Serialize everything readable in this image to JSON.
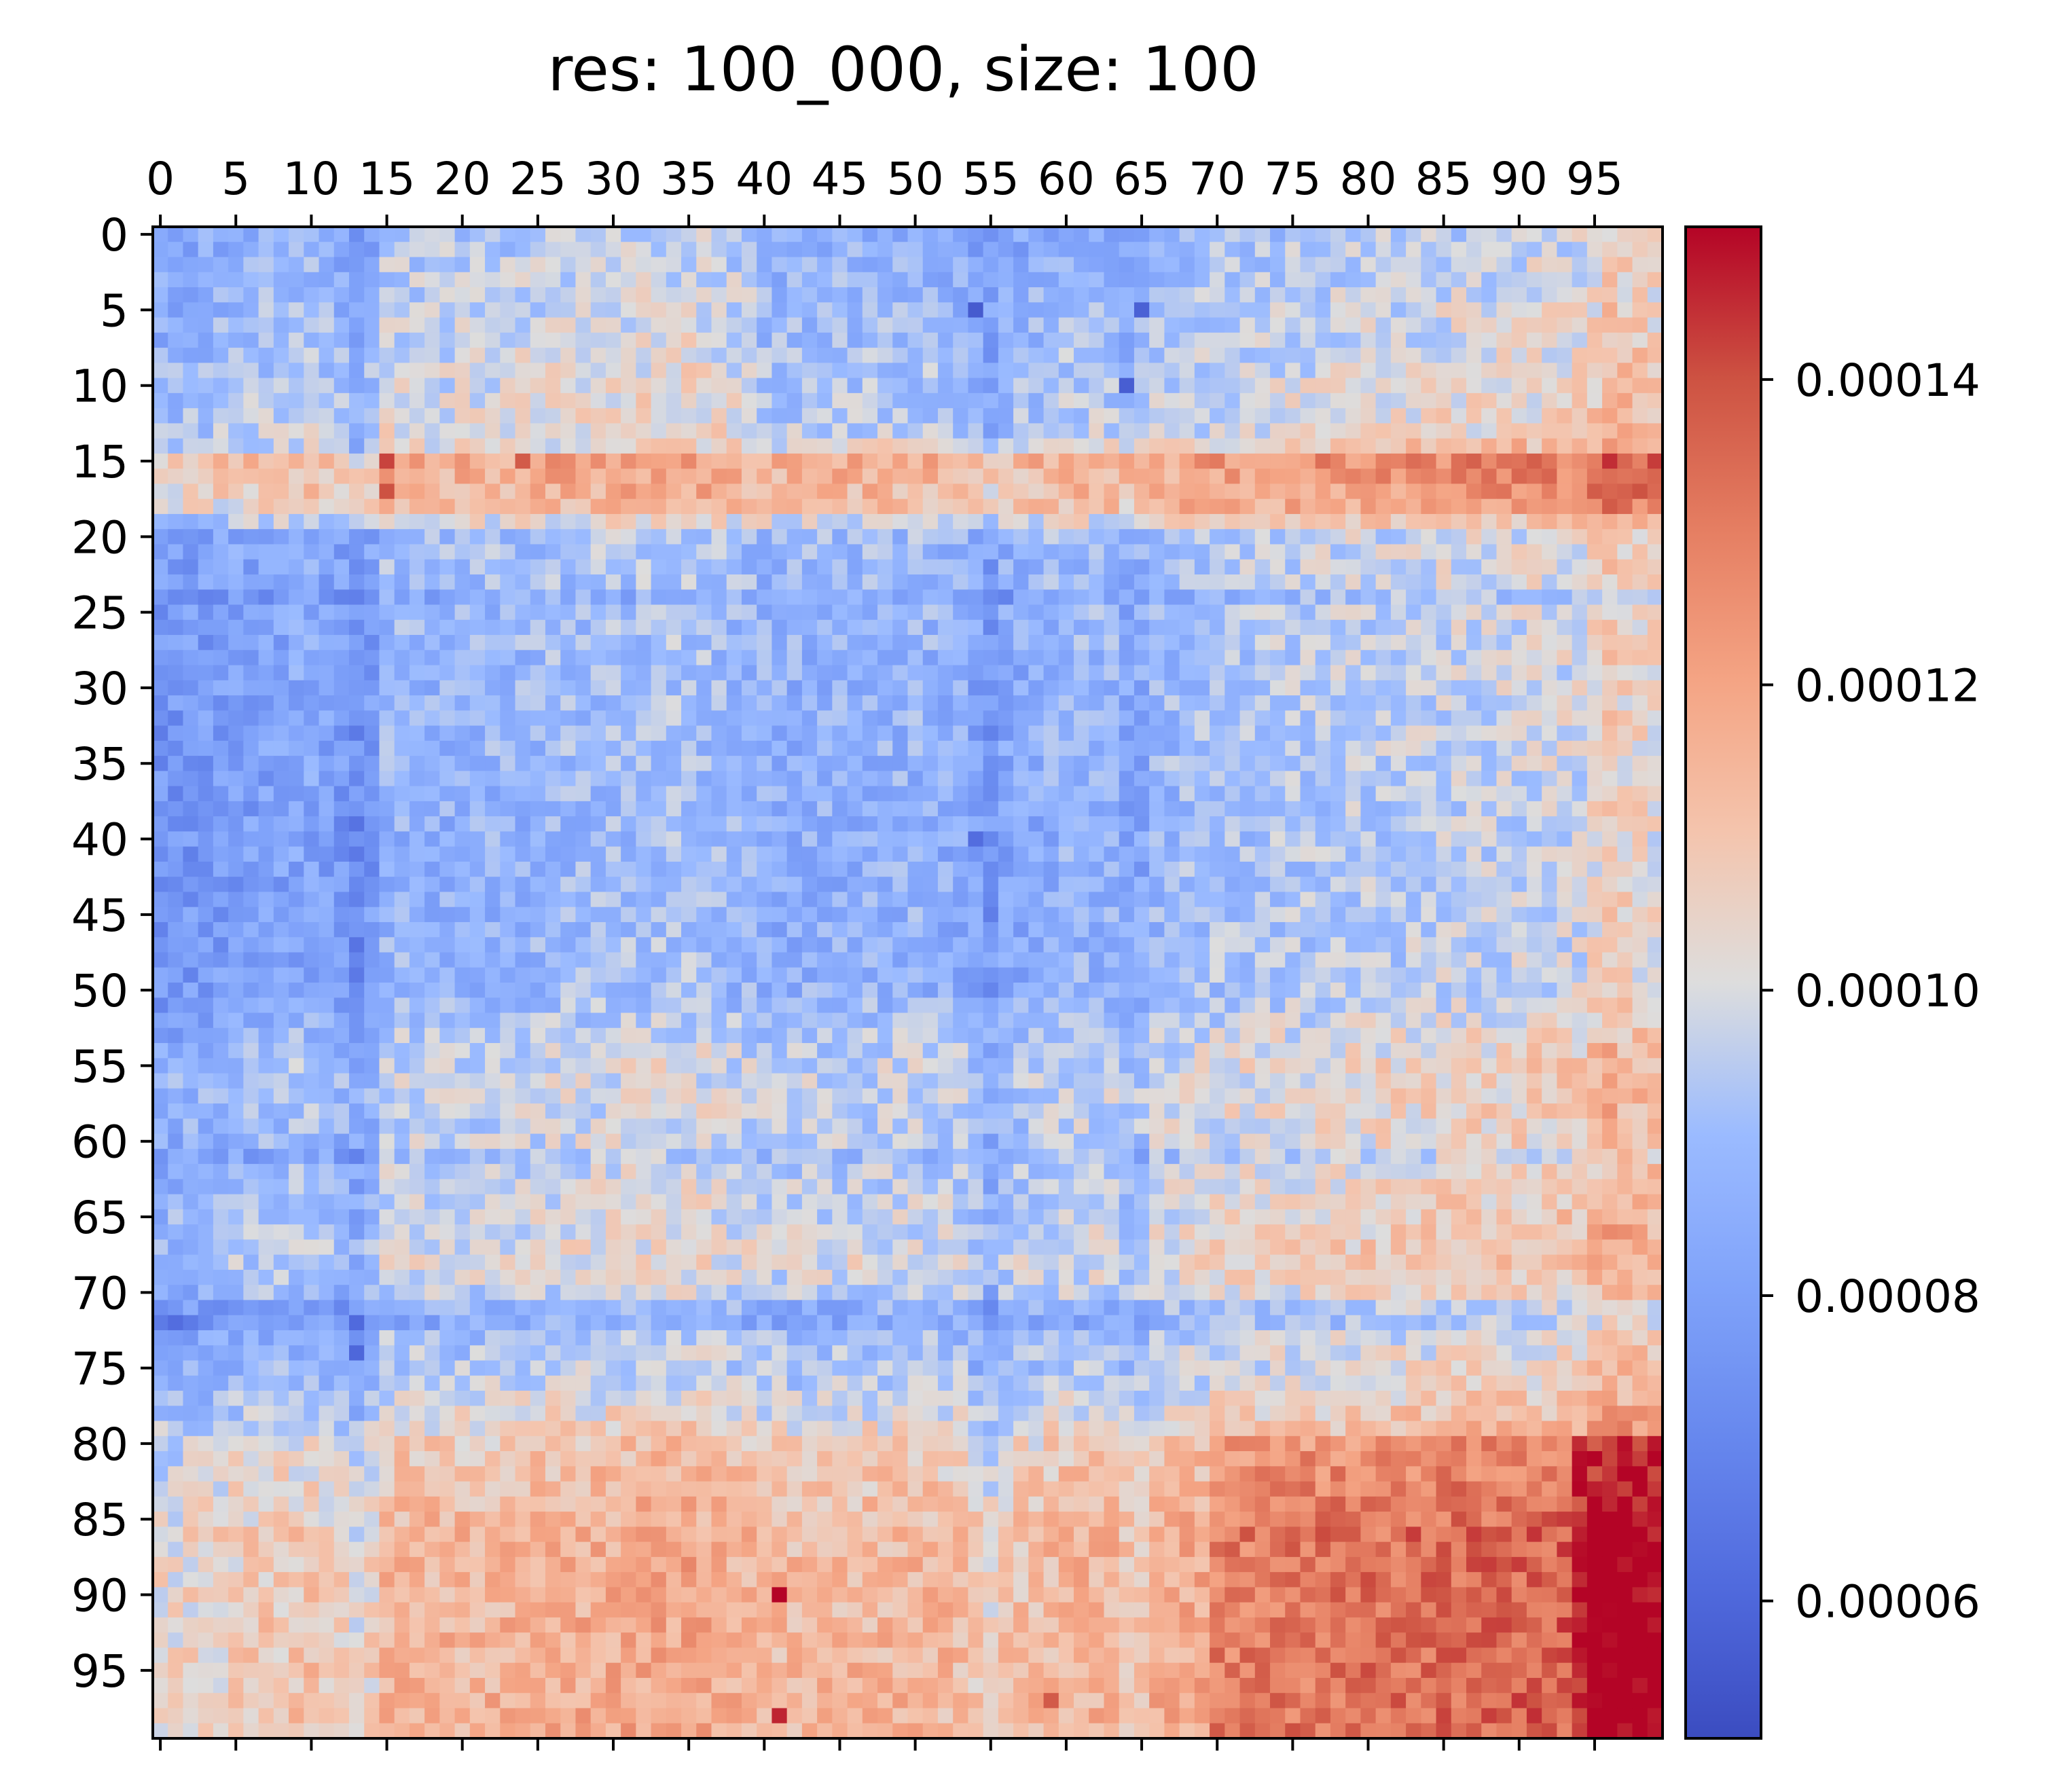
{
  "chart_data": {
    "type": "heatmap",
    "title": "res: 100_000, size: 100",
    "colormap": "coolwarm",
    "rows": 100,
    "cols": 100,
    "x_ticks": [
      "0",
      "5",
      "10",
      "15",
      "20",
      "25",
      "30",
      "35",
      "40",
      "45",
      "50",
      "55",
      "60",
      "65",
      "70",
      "75",
      "80",
      "85",
      "90",
      "95"
    ],
    "y_ticks": [
      "0",
      "5",
      "10",
      "15",
      "20",
      "25",
      "30",
      "35",
      "40",
      "45",
      "50",
      "55",
      "60",
      "65",
      "70",
      "75",
      "80",
      "85",
      "90",
      "95"
    ],
    "x_tick_position": "top",
    "colorbar": {
      "vmin": 5.1e-05,
      "vmax": 0.00015,
      "ticks": [
        6e-05,
        8e-05,
        0.0001,
        0.00012,
        0.00014
      ],
      "tick_labels": [
        "0.00006",
        "0.00008",
        "0.00010",
        "0.00012",
        "0.00014"
      ]
    },
    "row_profile": [
      [
        0,
        9.2e-05
      ],
      [
        14,
        0.000102
      ],
      [
        15,
        0.000118
      ],
      [
        18,
        0.000112
      ],
      [
        20,
        9e-05
      ],
      [
        25,
        8.8e-05
      ],
      [
        40,
        8.6e-05
      ],
      [
        50,
        8.7e-05
      ],
      [
        55,
        9.7e-05
      ],
      [
        62,
        9.5e-05
      ],
      [
        68,
        0.000101
      ],
      [
        72,
        9e-05
      ],
      [
        76,
        9.5e-05
      ],
      [
        80,
        0.000107
      ],
      [
        86,
        0.000114
      ],
      [
        99,
        0.000115
      ]
    ],
    "col_profile": [
      [
        0,
        8.1e-05
      ],
      [
        10,
        8.8e-05
      ],
      [
        12,
        8.3e-05
      ],
      [
        13,
        8.2e-05
      ],
      [
        15,
        9.3e-05
      ],
      [
        20,
        9.2e-05
      ],
      [
        35,
        9.7e-05
      ],
      [
        40,
        9.1e-05
      ],
      [
        50,
        9.2e-05
      ],
      [
        54,
        9e-05
      ],
      [
        55,
        8.6e-05
      ],
      [
        60,
        9.3e-05
      ],
      [
        64,
        9.2e-05
      ],
      [
        70,
        9.7e-05
      ],
      [
        80,
        0.0001
      ],
      [
        94,
        0.000104
      ],
      [
        96,
        0.000112
      ],
      [
        99,
        0.000108
      ]
    ],
    "bands": {
      "low_rows": [
        [
          0,
          13
        ],
        [
          20,
          24
        ],
        [
          37,
          40
        ],
        [
          62,
          62
        ],
        [
          71,
          73
        ]
      ],
      "high_rows": [
        [
          15,
          17
        ],
        [
          55,
          55
        ],
        [
          67,
          69
        ],
        [
          81,
          99
        ]
      ],
      "low_cols": [
        [
          13,
          14
        ],
        [
          54,
          55
        ],
        [
          64,
          65
        ]
      ],
      "high_cols": [
        [
          15,
          15
        ],
        [
          95,
          97
        ]
      ],
      "line_rows": [
        24,
        61,
        71,
        72
      ],
      "corner": {
        "rows": [
          80,
          99
        ],
        "cols": [
          94,
          99
        ],
        "value": 0.00015
      }
    },
    "hot_cells": [
      {
        "row": 90,
        "col": 41,
        "value": 0.00015
      },
      {
        "row": 98,
        "col": 41,
        "value": 0.000146
      },
      {
        "row": 15,
        "col": 15,
        "value": 0.000142
      },
      {
        "row": 17,
        "col": 15,
        "value": 0.00014
      },
      {
        "row": 15,
        "col": 24,
        "value": 0.000138
      },
      {
        "row": 86,
        "col": 72,
        "value": 0.00014
      },
      {
        "row": 86,
        "col": 77,
        "value": 0.000141
      },
      {
        "row": 86,
        "col": 83,
        "value": 0.000143
      },
      {
        "row": 86,
        "col": 87,
        "value": 0.000143
      },
      {
        "row": 86,
        "col": 91,
        "value": 0.000144
      },
      {
        "row": 84,
        "col": 78,
        "value": 0.000138
      },
      {
        "row": 88,
        "col": 85,
        "value": 0.00014
      },
      {
        "row": 92,
        "col": 81,
        "value": 0.000138
      },
      {
        "row": 95,
        "col": 84,
        "value": 0.000141
      },
      {
        "row": 97,
        "col": 59,
        "value": 0.000138
      }
    ],
    "cold_cells": [
      {
        "row": 5,
        "col": 54,
        "value": 5.6e-05
      },
      {
        "row": 5,
        "col": 65,
        "value": 5.8e-05
      },
      {
        "row": 10,
        "col": 64,
        "value": 5.7e-05
      },
      {
        "row": 72,
        "col": 13,
        "value": 6.1e-05
      },
      {
        "row": 74,
        "col": 13,
        "value": 6e-05
      },
      {
        "row": 40,
        "col": 54,
        "value": 6.2e-05
      },
      {
        "row": 72,
        "col": 1,
        "value": 6.2e-05
      }
    ]
  }
}
